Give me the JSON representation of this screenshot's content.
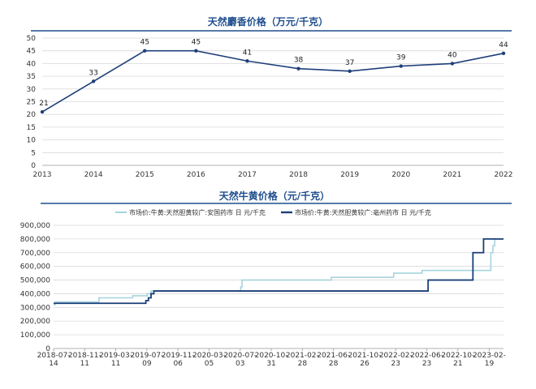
{
  "chart_data": [
    {
      "type": "line",
      "title": "天然麝香价格（万元/千克）",
      "categories": [
        "2013",
        "2014",
        "2015",
        "2016",
        "2017",
        "2018",
        "2019",
        "2020",
        "2021",
        "2022"
      ],
      "values": [
        21,
        33,
        45,
        45,
        41,
        38,
        37,
        39,
        40,
        44
      ],
      "ylim": [
        0,
        50
      ],
      "yticks": [
        0,
        5,
        10,
        15,
        20,
        25,
        30,
        35,
        40,
        45,
        50
      ],
      "grid": true,
      "data_labels": true,
      "color": "#1f3f7a"
    },
    {
      "type": "line",
      "title": "天然牛黄价格（元/千克）",
      "x_ticks": [
        "2018-07-14",
        "2018-11-11",
        "2019-03-11",
        "2019-07-09",
        "2019-11-06",
        "2020-03-05",
        "2020-07-03",
        "2020-10-31",
        "2021-02-28",
        "2021-06-28",
        "2021-10-26",
        "2022-02-23",
        "2022-06-23",
        "2022-10-21",
        "2023-02-19"
      ],
      "ylim": [
        0,
        900000
      ],
      "yticks": [
        "0",
        "100,000",
        "200,000",
        "300,000",
        "400,000",
        "500,000",
        "600,000",
        "700,000",
        "800,000",
        "900,000"
      ],
      "grid": true,
      "legend_position": "top",
      "series": [
        {
          "name": "市场价:牛黄:天然胆黄较广:安国药市 日 元/千克",
          "color": "#a6d4dc",
          "step": true,
          "points": [
            [
              "2018-07-14",
              320000
            ],
            [
              "2018-07-20",
              340000
            ],
            [
              "2019-01-05",
              370000
            ],
            [
              "2019-05-15",
              385000
            ],
            [
              "2019-07-10",
              400000
            ],
            [
              "2019-07-25",
              420000
            ],
            [
              "2020-07-05",
              450000
            ],
            [
              "2020-07-10",
              500000
            ],
            [
              "2021-06-20",
              520000
            ],
            [
              "2022-02-15",
              550000
            ],
            [
              "2022-06-05",
              570000
            ],
            [
              "2023-02-10",
              570000
            ],
            [
              "2023-02-25",
              700000
            ],
            [
              "2023-03-05",
              750000
            ],
            [
              "2023-03-12",
              800000
            ],
            [
              "2023-04-15",
              800000
            ]
          ]
        },
        {
          "name": "市场价:牛黄:天然胆黄较广:亳州药市 日 元/千克",
          "color": "#1a3f78",
          "step": true,
          "points": [
            [
              "2018-07-14",
              330000
            ],
            [
              "2019-06-25",
              330000
            ],
            [
              "2019-07-05",
              350000
            ],
            [
              "2019-07-15",
              370000
            ],
            [
              "2019-07-25",
              400000
            ],
            [
              "2019-08-05",
              420000
            ],
            [
              "2022-06-23",
              420000
            ],
            [
              "2022-06-28",
              500000
            ],
            [
              "2022-12-15",
              500000
            ],
            [
              "2022-12-18",
              700000
            ],
            [
              "2023-01-25",
              700000
            ],
            [
              "2023-01-28",
              800000
            ],
            [
              "2023-04-15",
              800000
            ]
          ]
        }
      ]
    }
  ]
}
